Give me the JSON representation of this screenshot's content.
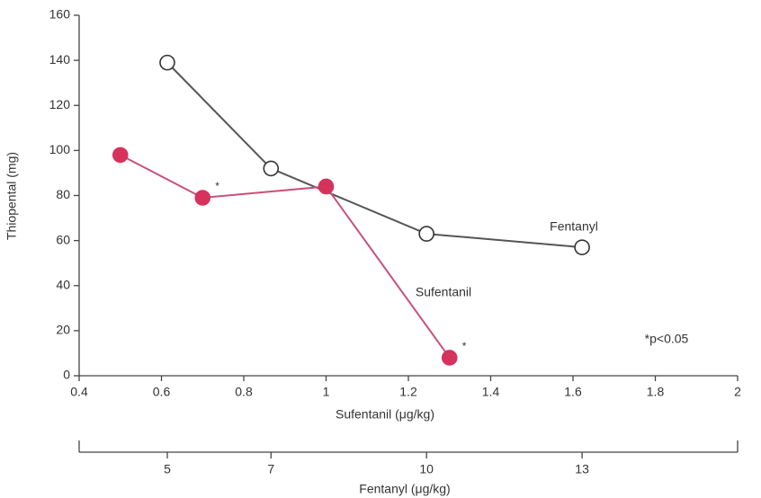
{
  "chart_data": {
    "type": "line",
    "xlabel": "Sufentanil (μg/kg)",
    "x2label": "Fentanyl (μg/kg)",
    "ylabel": "Thiopental (mg)",
    "note": "*p<0.05",
    "xlim": [
      0.4,
      2
    ],
    "xticks": [
      0.4,
      0.6,
      0.8,
      1,
      1.2,
      1.4,
      1.6,
      1.8,
      2
    ],
    "x2lim": [
      3.3,
      16
    ],
    "x2ticks": [
      5,
      7,
      10,
      13
    ],
    "ylim": [
      0,
      160
    ],
    "yticks": [
      0,
      20,
      40,
      60,
      80,
      100,
      120,
      140,
      160
    ],
    "series": [
      {
        "name": "Fentanyl",
        "axis": "x2",
        "color": "#555555",
        "marker_fill": "#ffffff",
        "x": [
          5,
          7,
          10,
          13
        ],
        "values": [
          139,
          92,
          63,
          57
        ]
      },
      {
        "name": "Sufentanil",
        "color": "#c9507a",
        "marker_fill": "#d6335c",
        "x": [
          0.5,
          0.7,
          1.0,
          1.3
        ],
        "values": [
          98,
          79,
          84,
          8
        ],
        "point_labels": [
          null,
          "*",
          null,
          "*"
        ]
      }
    ]
  }
}
